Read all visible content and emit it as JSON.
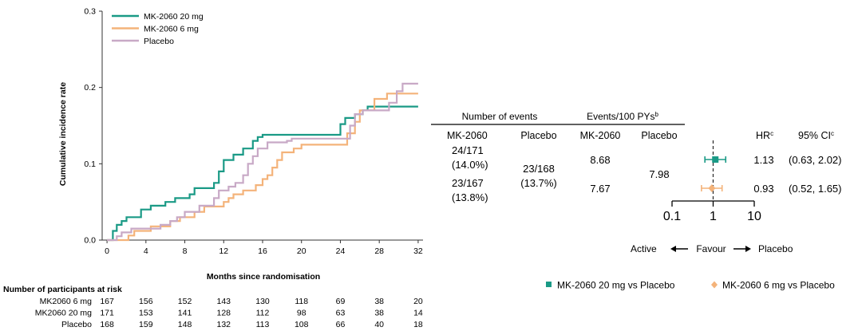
{
  "chart_data": [
    {
      "type": "line",
      "step": true,
      "title": "",
      "xlabel": "Months since randomisation",
      "ylabel": "Cumulative incidence rate",
      "xlim": [
        -0.5,
        32.5
      ],
      "ylim": [
        0,
        0.3
      ],
      "xticks": [
        0,
        4,
        8,
        12,
        16,
        20,
        24,
        28,
        32
      ],
      "yticks": [
        0.0,
        0.1,
        0.2,
        0.3
      ],
      "ytick_labels": [
        "0.0",
        "0.1",
        "0.2",
        "0.3"
      ],
      "legend_position": "top-left",
      "series": [
        {
          "name": "MK-2060 20 mg",
          "color": "#1a9a86",
          "points": [
            [
              0,
              0
            ],
            [
              0.6,
              0.012
            ],
            [
              1,
              0.02
            ],
            [
              1.5,
              0.025
            ],
            [
              2,
              0.03
            ],
            [
              3.5,
              0.04
            ],
            [
              4.5,
              0.045
            ],
            [
              6,
              0.05
            ],
            [
              7,
              0.055
            ],
            [
              8.5,
              0.06
            ],
            [
              9,
              0.068
            ],
            [
              11,
              0.075
            ],
            [
              11.5,
              0.09
            ],
            [
              12,
              0.105
            ],
            [
              13,
              0.112
            ],
            [
              14,
              0.12
            ],
            [
              15,
              0.13
            ],
            [
              15.5,
              0.135
            ],
            [
              16,
              0.138
            ],
            [
              24,
              0.152
            ],
            [
              24.5,
              0.16
            ],
            [
              25.5,
              0.165
            ],
            [
              26.3,
              0.17
            ],
            [
              26.8,
              0.175
            ],
            [
              32,
              0.175
            ]
          ]
        },
        {
          "name": "MK-2060 6 mg",
          "color": "#f4b37a",
          "points": [
            [
              0,
              0
            ],
            [
              2.2,
              0.006
            ],
            [
              2.8,
              0.012
            ],
            [
              4.5,
              0.018
            ],
            [
              6.5,
              0.025
            ],
            [
              7.5,
              0.03
            ],
            [
              9,
              0.037
            ],
            [
              10,
              0.044
            ],
            [
              12,
              0.05
            ],
            [
              12.5,
              0.055
            ],
            [
              13,
              0.06
            ],
            [
              14,
              0.065
            ],
            [
              15.3,
              0.072
            ],
            [
              16,
              0.08
            ],
            [
              16.5,
              0.085
            ],
            [
              17,
              0.095
            ],
            [
              17.5,
              0.105
            ],
            [
              18,
              0.115
            ],
            [
              19.2,
              0.12
            ],
            [
              20,
              0.125
            ],
            [
              24.7,
              0.14
            ],
            [
              25.5,
              0.155
            ],
            [
              26,
              0.17
            ],
            [
              27.5,
              0.185
            ],
            [
              28.8,
              0.192
            ],
            [
              32,
              0.192
            ]
          ]
        },
        {
          "name": "Placebo",
          "color": "#c8a9c6",
          "points": [
            [
              0,
              0
            ],
            [
              1,
              0.005
            ],
            [
              1.5,
              0.01
            ],
            [
              2.5,
              0.015
            ],
            [
              5.5,
              0.02
            ],
            [
              6.5,
              0.025
            ],
            [
              7.2,
              0.03
            ],
            [
              8,
              0.037
            ],
            [
              9.5,
              0.045
            ],
            [
              11,
              0.055
            ],
            [
              11.5,
              0.065
            ],
            [
              12.5,
              0.07
            ],
            [
              13.2,
              0.075
            ],
            [
              14,
              0.085
            ],
            [
              14.5,
              0.1
            ],
            [
              15,
              0.11
            ],
            [
              15.5,
              0.12
            ],
            [
              16.5,
              0.128
            ],
            [
              18.5,
              0.13
            ],
            [
              19,
              0.133
            ],
            [
              25,
              0.15
            ],
            [
              25.5,
              0.165
            ],
            [
              26.3,
              0.17
            ],
            [
              29,
              0.18
            ],
            [
              29.8,
              0.195
            ],
            [
              30.4,
              0.205
            ],
            [
              32,
              0.205
            ]
          ]
        }
      ]
    },
    {
      "type": "table",
      "title": "Number of participants at risk",
      "x_values": [
        0,
        4,
        8,
        12,
        16,
        20,
        24,
        28,
        32
      ],
      "rows": [
        {
          "label": "MK2060 6 mg",
          "values": [
            "167",
            "156",
            "152",
            "143",
            "130",
            "118",
            "69",
            "38",
            "20"
          ]
        },
        {
          "label": "MK2060 20 mg",
          "values": [
            "171",
            "153",
            "141",
            "128",
            "112",
            "98",
            "63",
            "38",
            "14"
          ]
        },
        {
          "label": "Placebo",
          "values": [
            "168",
            "159",
            "148",
            "132",
            "113",
            "108",
            "66",
            "40",
            "18"
          ]
        }
      ]
    },
    {
      "type": "scatter",
      "subtype": "forest",
      "scale": "log",
      "xlim": [
        0.1,
        10
      ],
      "xticks": [
        0.1,
        1,
        10
      ],
      "xtick_labels": [
        "0.1",
        "1",
        "10"
      ],
      "reference_line": 1,
      "direction_labels": {
        "left": "Active",
        "center": "Favour",
        "right": "Placebo"
      },
      "headers": {
        "events": "Number of events",
        "rate": "Events/100 PYs",
        "rate_sup": "b",
        "mk": "MK-2060",
        "placebo": "Placebo",
        "mk2": "MK-2060",
        "placebo2": "Placebo",
        "hr": "HR",
        "hr_sup": "c",
        "ci": "95% CI",
        "ci_sup": "c"
      },
      "placebo_events": [
        "23/168",
        "(13.7%)"
      ],
      "placebo_rate": "7.98",
      "rows": [
        {
          "name": "MK-2060 20 mg vs Placebo",
          "events": [
            "24/171",
            "(14.0%)"
          ],
          "rate": "8.68",
          "hr": 1.13,
          "hr_text": "1.13",
          "ci": [
            0.63,
            2.02
          ],
          "ci_text": "(0.63, 2.02)",
          "color": "#1a9a86",
          "marker": "square"
        },
        {
          "name": "MK-2060 6 mg vs Placebo",
          "events": [
            "23/167",
            "(13.8%)"
          ],
          "rate": "7.67",
          "hr": 0.93,
          "hr_text": "0.93",
          "ci": [
            0.52,
            1.65
          ],
          "ci_text": "(0.52, 1.65)",
          "color": "#f4b37a",
          "marker": "diamond"
        }
      ]
    }
  ]
}
